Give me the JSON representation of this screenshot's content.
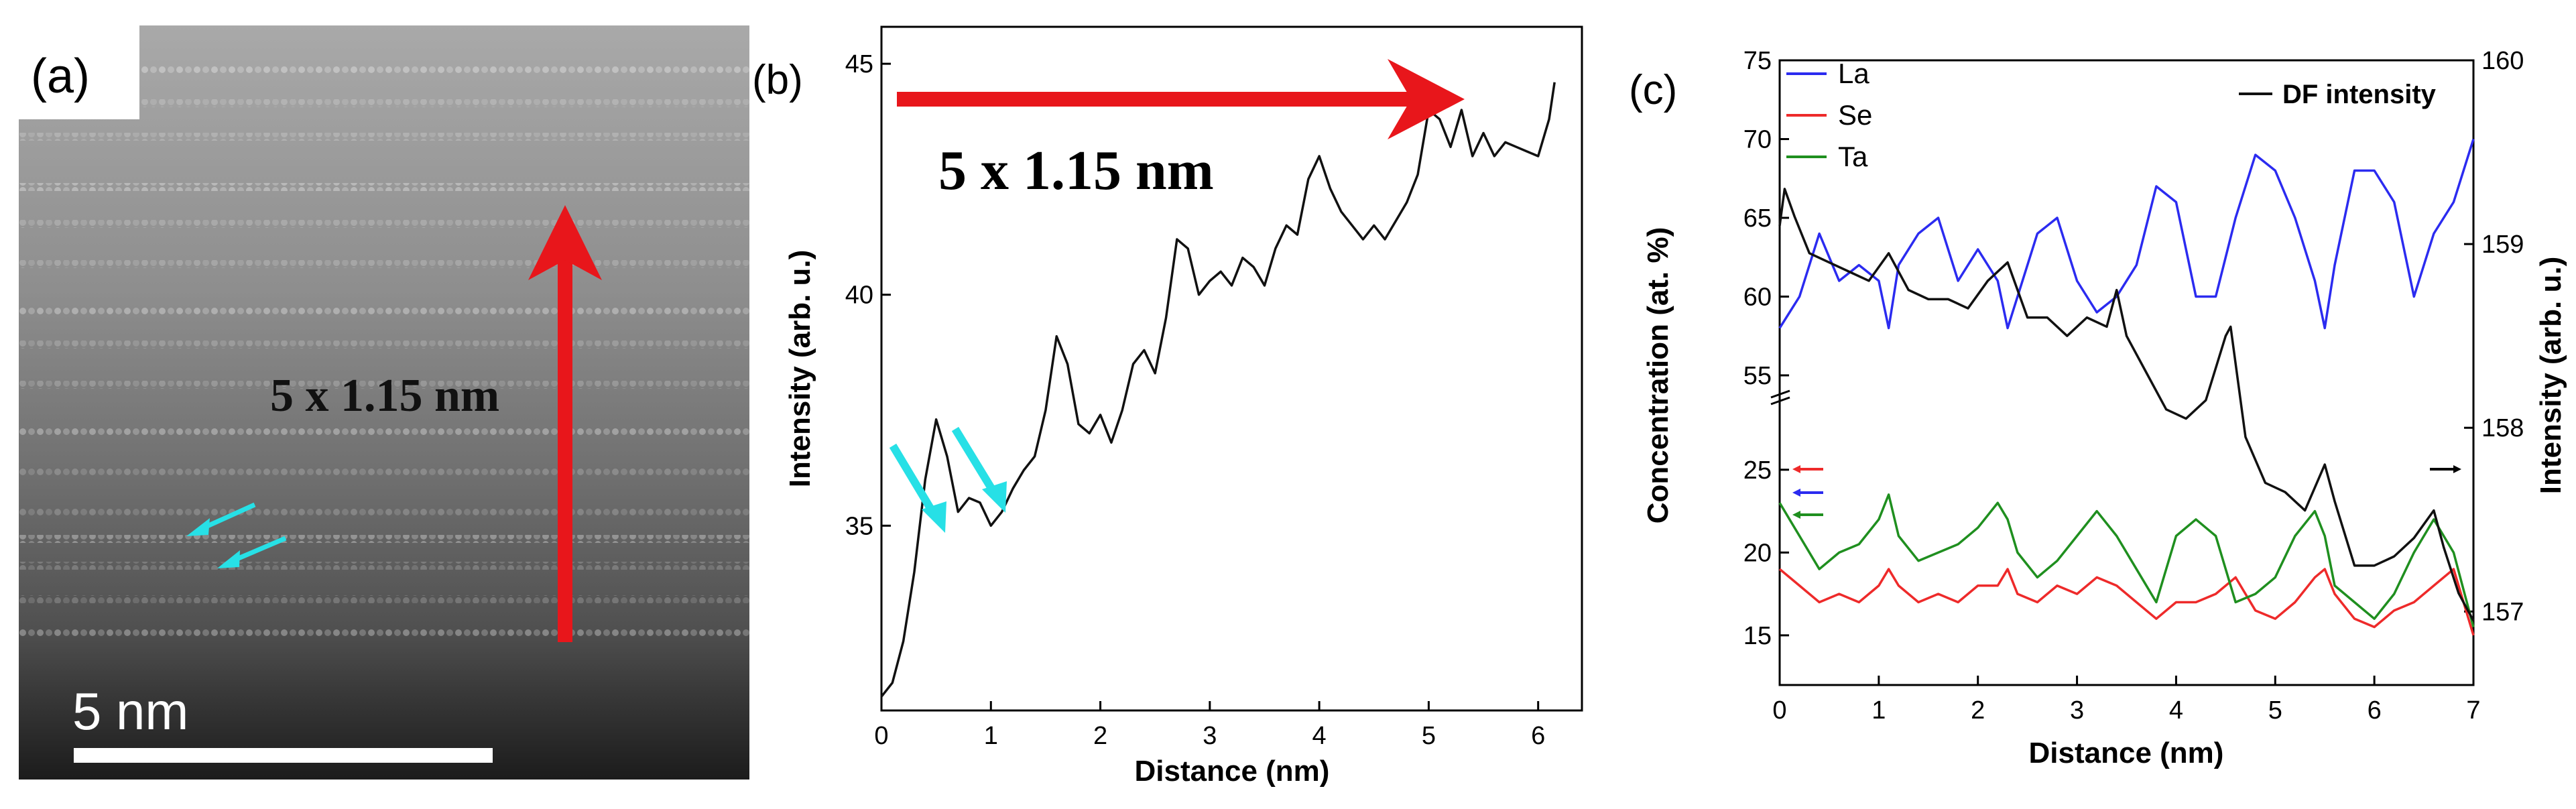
{
  "panels": {
    "a": {
      "label": "(a)",
      "annotation": "5 x 1.15 nm",
      "scale_bar_label": "5 nm"
    },
    "b": {
      "label": "(b)",
      "annotation": "5 x 1.15 nm"
    },
    "c": {
      "label": "(c)"
    }
  },
  "colors": {
    "red_arrow": "#e8161b",
    "cyan_arrow": "#27e0e6",
    "La": "#2b2bf0",
    "Se": "#ee2a2a",
    "Ta": "#1f8f1f",
    "DF": "#111111"
  },
  "chart_data": [
    {
      "type": "line",
      "panel": "b",
      "xlabel": "Distance (nm)",
      "ylabel": "Intensity (arb. u.)",
      "xlim": [
        0,
        6.4
      ],
      "ylim": [
        31,
        45.8
      ],
      "xticks": [
        0,
        1,
        2,
        3,
        4,
        5,
        6
      ],
      "yticks": [
        35,
        40,
        45
      ],
      "series": [
        {
          "x": [
            0,
            0.1,
            0.2,
            0.3,
            0.4,
            0.5,
            0.6,
            0.7,
            0.8,
            0.9,
            1.0,
            1.1,
            1.2,
            1.3,
            1.4,
            1.5,
            1.6,
            1.7,
            1.8,
            1.9,
            2.0,
            2.1,
            2.2,
            2.3,
            2.4,
            2.5,
            2.6,
            2.7,
            2.8,
            2.9,
            3.0,
            3.1,
            3.2,
            3.3,
            3.4,
            3.5,
            3.6,
            3.7,
            3.8,
            3.9,
            4.0,
            4.1,
            4.2,
            4.3,
            4.4,
            4.5,
            4.6,
            4.7,
            4.8,
            4.9,
            5.0,
            5.1,
            5.2,
            5.3,
            5.4,
            5.5,
            5.6,
            5.7,
            5.8,
            5.9,
            6.0,
            6.1,
            6.15
          ],
          "y": [
            31.3,
            31.6,
            32.5,
            34.0,
            36.0,
            37.3,
            36.5,
            35.3,
            35.6,
            35.5,
            35.0,
            35.3,
            35.8,
            36.2,
            36.5,
            37.5,
            39.1,
            38.5,
            37.2,
            37.0,
            37.4,
            36.8,
            37.5,
            38.5,
            38.8,
            38.3,
            39.5,
            41.2,
            41.0,
            40.0,
            40.3,
            40.5,
            40.2,
            40.8,
            40.6,
            40.2,
            41.0,
            41.5,
            41.3,
            42.5,
            43.0,
            42.3,
            41.8,
            41.5,
            41.2,
            41.5,
            41.2,
            41.6,
            42.0,
            42.6,
            44.0,
            43.8,
            43.2,
            44.0,
            43.0,
            43.5,
            43.0,
            43.3,
            43.2,
            43.1,
            43.0,
            43.8,
            44.6
          ]
        }
      ]
    },
    {
      "type": "line",
      "panel": "c",
      "xlabel": "Distance (nm)",
      "ylabel": "Concentration (at. %)",
      "ylabel_right": "Intensity (arb. u.)",
      "xlim": [
        0,
        7
      ],
      "xticks": [
        0,
        1,
        2,
        3,
        4,
        5,
        6,
        7
      ],
      "yticks_left": [
        15,
        20,
        25,
        55,
        60,
        65,
        70,
        75
      ],
      "yticks_right": [
        157,
        158,
        159,
        160
      ],
      "ylim_right": [
        156.6,
        160
      ],
      "legend": [
        "La",
        "Se",
        "Ta",
        "DF intensity"
      ],
      "series": [
        {
          "name": "La",
          "axis": "left",
          "x": [
            0,
            0.2,
            0.4,
            0.6,
            0.8,
            1.0,
            1.1,
            1.2,
            1.4,
            1.6,
            1.8,
            2.0,
            2.2,
            2.3,
            2.4,
            2.6,
            2.8,
            3.0,
            3.2,
            3.4,
            3.6,
            3.8,
            4.0,
            4.2,
            4.4,
            4.6,
            4.8,
            5.0,
            5.2,
            5.4,
            5.5,
            5.6,
            5.8,
            6.0,
            6.2,
            6.4,
            6.6,
            6.8,
            7.0
          ],
          "y": [
            58,
            60,
            64,
            61,
            62,
            61,
            58,
            62,
            64,
            65,
            61,
            63,
            61,
            58,
            60,
            64,
            65,
            61,
            59,
            60,
            62,
            67,
            66,
            60,
            60,
            65,
            69,
            68,
            65,
            61,
            58,
            62,
            68,
            68,
            66,
            60,
            64,
            66,
            70
          ]
        },
        {
          "name": "Se",
          "axis": "left",
          "x": [
            0,
            0.2,
            0.4,
            0.6,
            0.8,
            1.0,
            1.1,
            1.2,
            1.4,
            1.6,
            1.8,
            2.0,
            2.2,
            2.3,
            2.4,
            2.6,
            2.8,
            3.0,
            3.2,
            3.4,
            3.6,
            3.8,
            4.0,
            4.2,
            4.4,
            4.6,
            4.8,
            5.0,
            5.2,
            5.4,
            5.5,
            5.6,
            5.8,
            6.0,
            6.2,
            6.4,
            6.6,
            6.8,
            7.0
          ],
          "y": [
            19,
            18,
            17,
            17.5,
            17,
            18,
            19,
            18,
            17,
            17.5,
            17,
            18,
            18,
            19,
            17.5,
            17,
            18,
            17.5,
            18.5,
            18,
            17,
            16,
            17,
            17,
            17.5,
            18.5,
            16.5,
            16,
            17,
            18.5,
            19,
            17.5,
            16,
            15.5,
            16.5,
            17,
            18,
            19,
            15
          ]
        },
        {
          "name": "Ta",
          "axis": "left",
          "x": [
            0,
            0.2,
            0.4,
            0.6,
            0.8,
            1.0,
            1.1,
            1.2,
            1.4,
            1.6,
            1.8,
            2.0,
            2.2,
            2.3,
            2.4,
            2.6,
            2.8,
            3.0,
            3.2,
            3.4,
            3.6,
            3.8,
            4.0,
            4.2,
            4.4,
            4.6,
            4.8,
            5.0,
            5.2,
            5.4,
            5.5,
            5.6,
            5.8,
            6.0,
            6.2,
            6.4,
            6.6,
            6.8,
            7.0
          ],
          "y": [
            23,
            21,
            19,
            20,
            20.5,
            22,
            23.5,
            21,
            19.5,
            20,
            20.5,
            21.5,
            23,
            22,
            20,
            18.5,
            19.5,
            21,
            22.5,
            21,
            19,
            17,
            21,
            22,
            21,
            17,
            17.5,
            18.5,
            21,
            22.5,
            21,
            18,
            17,
            16,
            17.5,
            20,
            22,
            20,
            15.5
          ]
        },
        {
          "name": "DF intensity",
          "axis": "right",
          "x": [
            0,
            0.05,
            0.15,
            0.3,
            0.5,
            0.7,
            0.9,
            1.1,
            1.3,
            1.5,
            1.7,
            1.9,
            2.1,
            2.3,
            2.5,
            2.7,
            2.9,
            3.1,
            3.3,
            3.4,
            3.5,
            3.7,
            3.9,
            4.1,
            4.3,
            4.5,
            4.55,
            4.7,
            4.9,
            5.1,
            5.3,
            5.5,
            5.6,
            5.8,
            6.0,
            6.2,
            6.4,
            6.6,
            6.7,
            6.85,
            7.0
          ],
          "y": [
            159.1,
            159.3,
            159.15,
            158.95,
            158.9,
            158.85,
            158.8,
            158.95,
            158.75,
            158.7,
            158.7,
            158.65,
            158.8,
            158.9,
            158.6,
            158.6,
            158.5,
            158.6,
            158.55,
            158.75,
            158.5,
            158.3,
            158.1,
            158.05,
            158.15,
            158.5,
            158.55,
            157.95,
            157.7,
            157.65,
            157.55,
            157.8,
            157.6,
            157.25,
            157.25,
            157.3,
            157.4,
            157.55,
            157.35,
            157.1,
            156.95
          ]
        }
      ]
    }
  ]
}
